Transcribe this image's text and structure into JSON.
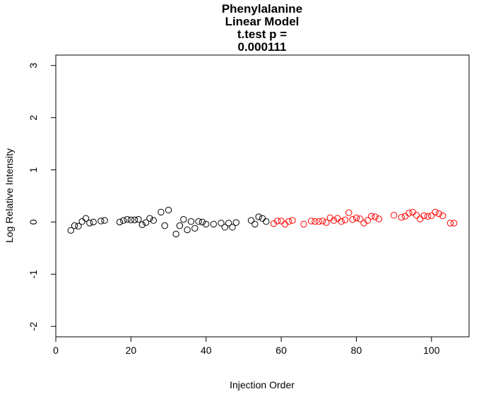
{
  "chart_data": {
    "type": "scatter",
    "title_lines": [
      "Phenylalanine",
      "Linear Model",
      "t.test p =",
      "0.000111"
    ],
    "xlabel": "Injection Order",
    "ylabel": "Log Relative Intensity",
    "xlim": [
      0,
      110
    ],
    "ylim": [
      -2.2,
      3.2
    ],
    "x_ticks": [
      0,
      20,
      40,
      60,
      80,
      100
    ],
    "y_ticks": [
      -2,
      -1,
      0,
      1,
      2,
      3
    ],
    "grid": false,
    "legend": "none",
    "series": [
      {
        "color": "#000000",
        "points": [
          [
            4,
            -0.16
          ],
          [
            5,
            -0.07
          ],
          [
            6,
            -0.08
          ],
          [
            7,
            0.01
          ],
          [
            8,
            0.07
          ],
          [
            9,
            -0.02
          ],
          [
            10,
            0.0
          ],
          [
            12,
            0.02
          ],
          [
            13,
            0.03
          ],
          [
            17,
            0.0
          ],
          [
            18,
            0.03
          ],
          [
            19,
            0.05
          ],
          [
            20,
            0.04
          ],
          [
            21,
            0.04
          ],
          [
            22,
            0.05
          ],
          [
            23,
            -0.05
          ],
          [
            24,
            -0.01
          ],
          [
            25,
            0.07
          ],
          [
            26,
            0.03
          ],
          [
            28,
            0.19
          ],
          [
            29,
            -0.07
          ],
          [
            30,
            0.23
          ],
          [
            32,
            -0.23
          ],
          [
            33,
            -0.07
          ],
          [
            34,
            0.05
          ],
          [
            35,
            -0.15
          ],
          [
            36,
            0.01
          ],
          [
            37,
            -0.12
          ],
          [
            38,
            0.01
          ],
          [
            39,
            0.0
          ],
          [
            40,
            -0.04
          ],
          [
            42,
            -0.04
          ],
          [
            44,
            -0.02
          ],
          [
            45,
            -0.1
          ],
          [
            46,
            -0.02
          ],
          [
            47,
            -0.1
          ],
          [
            48,
            -0.01
          ],
          [
            52,
            0.03
          ],
          [
            53,
            -0.04
          ],
          [
            54,
            0.1
          ],
          [
            55,
            0.07
          ],
          [
            56,
            0.01
          ]
        ]
      },
      {
        "color": "#ff0000",
        "points": [
          [
            58,
            -0.03
          ],
          [
            59,
            0.02
          ],
          [
            60,
            0.02
          ],
          [
            61,
            -0.04
          ],
          [
            62,
            0.01
          ],
          [
            63,
            0.03
          ],
          [
            66,
            -0.04
          ],
          [
            68,
            0.02
          ],
          [
            69,
            0.01
          ],
          [
            70,
            0.01
          ],
          [
            71,
            0.02
          ],
          [
            72,
            -0.01
          ],
          [
            73,
            0.08
          ],
          [
            74,
            0.03
          ],
          [
            75,
            0.07
          ],
          [
            76,
            0.01
          ],
          [
            77,
            0.04
          ],
          [
            78,
            0.18
          ],
          [
            79,
            0.05
          ],
          [
            80,
            0.08
          ],
          [
            81,
            0.06
          ],
          [
            82,
            -0.02
          ],
          [
            83,
            0.03
          ],
          [
            84,
            0.11
          ],
          [
            85,
            0.1
          ],
          [
            86,
            0.06
          ],
          [
            90,
            0.13
          ],
          [
            92,
            0.09
          ],
          [
            93,
            0.11
          ],
          [
            94,
            0.17
          ],
          [
            95,
            0.19
          ],
          [
            96,
            0.13
          ],
          [
            97,
            0.06
          ],
          [
            98,
            0.12
          ],
          [
            99,
            0.11
          ],
          [
            100,
            0.12
          ],
          [
            101,
            0.19
          ],
          [
            102,
            0.16
          ],
          [
            103,
            0.12
          ],
          [
            105,
            -0.02
          ],
          [
            106,
            -0.02
          ]
        ]
      }
    ]
  }
}
